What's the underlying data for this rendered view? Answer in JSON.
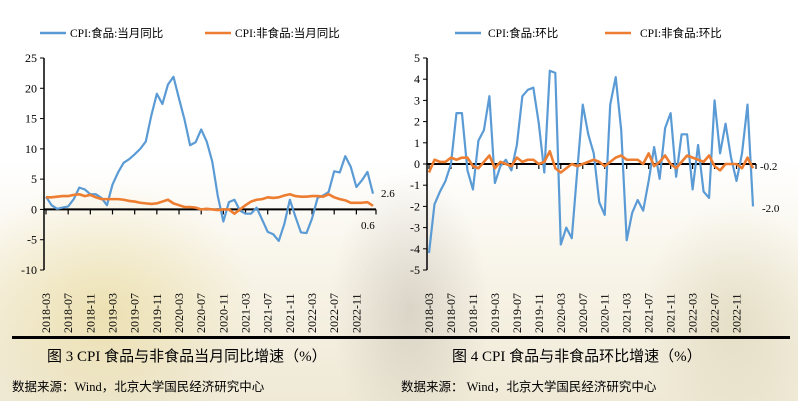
{
  "colors": {
    "food": "#5b9bd5",
    "nonfood": "#ed7d31",
    "axis": "#000000"
  },
  "chart_data": [
    {
      "type": "line",
      "title": "图 3 CPI 食品与非食品当月同比增速（%）",
      "source": "数据来源：Wind，北京大学国民经济研究中心",
      "ylim": [
        -10,
        25
      ],
      "yticks": [
        "25",
        "20",
        "15",
        "10",
        "5",
        "0",
        "-5",
        "-10"
      ],
      "ytick_values": [
        25,
        20,
        15,
        10,
        5,
        0,
        -5,
        -10
      ],
      "xtick_labels": [
        "2018-03",
        "2018-07",
        "2018-11",
        "2019-03",
        "2019-07",
        "2019-11",
        "2020-03",
        "2020-07",
        "2020-11",
        "2021-03",
        "2021-07",
        "2021-11",
        "2022-03",
        "2022-07",
        "2022-11"
      ],
      "x_start": "2018-03",
      "x_end": "2023-02",
      "legend": "top",
      "grid": false,
      "end_labels": [
        "2.6",
        "0.6"
      ],
      "series": [
        {
          "name": "CPI:食品:当月同比",
          "values": [
            2.1,
            0.7,
            0.1,
            0.3,
            0.5,
            1.7,
            3.6,
            3.3,
            2.5,
            2.5,
            1.9,
            0.7,
            4.1,
            6.1,
            7.7,
            8.3,
            9.1,
            10.0,
            11.2,
            15.5,
            19.1,
            17.4,
            20.6,
            21.9,
            18.3,
            14.8,
            10.6,
            11.1,
            13.2,
            11.2,
            7.9,
            2.2,
            -2.0,
            1.2,
            1.6,
            -0.2,
            -0.7,
            -0.7,
            0.3,
            -1.7,
            -3.7,
            -4.1,
            -5.2,
            -2.4,
            1.6,
            -1.2,
            -3.8,
            -3.9,
            -1.5,
            1.9,
            2.3,
            2.9,
            6.3,
            6.1,
            8.8,
            7.0,
            3.7,
            4.8,
            6.2,
            2.6
          ]
        },
        {
          "name": "CPI:非食品:当月同比",
          "values": [
            2.0,
            2.0,
            2.1,
            2.2,
            2.2,
            2.4,
            2.5,
            2.2,
            2.4,
            2.0,
            1.7,
            1.7,
            1.7,
            1.7,
            1.6,
            1.4,
            1.3,
            1.1,
            1.0,
            0.9,
            1.0,
            1.3,
            1.6,
            1.0,
            0.7,
            0.4,
            0.4,
            0.3,
            0.0,
            0.1,
            0.0,
            -0.1,
            0.0,
            0.0,
            -0.7,
            0.0,
            0.7,
            1.3,
            1.6,
            1.7,
            2.0,
            1.9,
            2.0,
            2.3,
            2.5,
            2.2,
            2.1,
            2.1,
            2.2,
            2.2,
            2.1,
            2.5,
            2.0,
            1.7,
            1.5,
            1.1,
            1.1,
            1.1,
            1.2,
            0.6
          ]
        }
      ]
    },
    {
      "type": "line",
      "title": "图 4 CPI 食品与非食品环比增速（%）",
      "source": "数据来源： Wind，北京大学国民经济研究中心",
      "ylim": [
        -5,
        5
      ],
      "yticks": [
        "5",
        "4",
        "3",
        "2",
        "1",
        "0",
        "-1",
        "-2",
        "-3",
        "-4",
        "-5"
      ],
      "ytick_values": [
        5,
        4,
        3,
        2,
        1,
        0,
        -1,
        -2,
        -3,
        -4,
        -5
      ],
      "xtick_labels": [
        "2018-03",
        "2018-07",
        "2018-11",
        "2019-03",
        "2019-07",
        "2019-11",
        "2020-03",
        "2020-07",
        "2020-11",
        "2021-03",
        "2021-07",
        "2021-11",
        "2022-03",
        "2022-07",
        "2022-11"
      ],
      "x_start": "2018-03",
      "x_end": "2023-02",
      "legend": "top",
      "grid": false,
      "end_labels": [
        "-0.2",
        "-2.0"
      ],
      "series": [
        {
          "name": "CPI:食品:环比",
          "values": [
            -4.2,
            -1.9,
            -1.3,
            -0.8,
            0.0,
            2.4,
            2.4,
            -0.3,
            -1.2,
            1.1,
            1.6,
            3.2,
            -0.9,
            -0.1,
            0.2,
            -0.3,
            0.9,
            3.2,
            3.5,
            3.6,
            1.9,
            -0.4,
            4.4,
            4.3,
            -3.8,
            -3.0,
            -3.5,
            -0.3,
            2.8,
            1.4,
            0.5,
            -1.8,
            -2.4,
            2.8,
            4.1,
            1.6,
            -3.6,
            -2.3,
            -1.7,
            -2.2,
            -0.8,
            0.8,
            -0.7,
            1.7,
            2.4,
            -0.6,
            1.4,
            1.4,
            -1.2,
            0.9,
            -1.3,
            -1.6,
            3.0,
            0.5,
            1.9,
            0.3,
            -0.8,
            0.5,
            2.8,
            -2.0
          ]
        },
        {
          "name": "CPI:非食品:环比",
          "values": [
            -0.4,
            0.2,
            0.1,
            0.1,
            0.3,
            0.2,
            0.3,
            0.3,
            -0.1,
            -0.2,
            0.1,
            0.4,
            -0.2,
            0.1,
            0.0,
            -0.1,
            0.3,
            0.1,
            0.2,
            0.2,
            0.0,
            0.1,
            0.6,
            -0.2,
            -0.4,
            -0.2,
            0.0,
            -0.1,
            0.0,
            0.1,
            0.2,
            0.1,
            -0.1,
            0.1,
            0.3,
            0.4,
            0.2,
            0.2,
            0.2,
            0.0,
            0.5,
            -0.1,
            0.1,
            0.4,
            0.0,
            -0.2,
            0.1,
            0.4,
            0.3,
            0.2,
            0.1,
            0.4,
            -0.1,
            -0.3,
            0.0,
            0.0,
            0.0,
            -0.2,
            0.3,
            -0.2
          ]
        }
      ]
    }
  ]
}
